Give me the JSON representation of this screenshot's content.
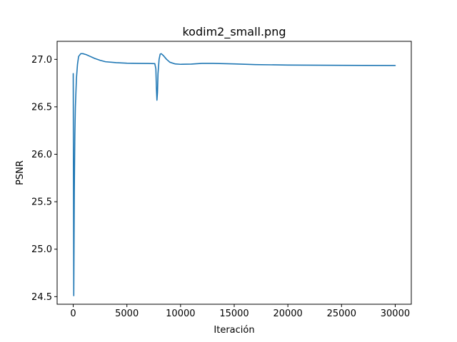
{
  "chart_data": {
    "type": "line",
    "title": "kodim2_small.png",
    "xlabel": "Iteración",
    "ylabel": "PSNR",
    "xlim": [
      -1500,
      31500
    ],
    "ylim": [
      24.42,
      27.19
    ],
    "x_ticks": [
      0,
      5000,
      10000,
      15000,
      20000,
      25000,
      30000
    ],
    "x_tick_labels": [
      "0",
      "5000",
      "10000",
      "15000",
      "20000",
      "25000",
      "30000"
    ],
    "y_ticks": [
      24.5,
      25.0,
      25.5,
      26.0,
      26.5,
      27.0
    ],
    "y_tick_labels": [
      "24.5",
      "25.0",
      "25.5",
      "26.0",
      "26.5",
      "27.0"
    ],
    "grid": false,
    "series": [
      {
        "color": "#1f77b4",
        "x": [
          0,
          50,
          100,
          150,
          200,
          300,
          400,
          500,
          700,
          900,
          1200,
          1600,
          2000,
          2500,
          3000,
          4000,
          5000,
          6000,
          7000,
          7600,
          7700,
          7750,
          7800,
          7850,
          7900,
          8000,
          8100,
          8200,
          8400,
          8700,
          9000,
          9500,
          10000,
          11000,
          12000,
          13000,
          14000,
          15000,
          17000,
          20000,
          25000,
          30000
        ],
        "y": [
          26.85,
          24.51,
          25.6,
          26.2,
          26.5,
          26.8,
          26.95,
          27.03,
          27.06,
          27.06,
          27.05,
          27.03,
          27.01,
          26.99,
          26.975,
          26.965,
          26.96,
          26.958,
          26.957,
          26.955,
          26.9,
          26.7,
          26.57,
          26.65,
          26.85,
          27.0,
          27.055,
          27.06,
          27.04,
          27.0,
          26.97,
          26.952,
          26.948,
          26.95,
          26.958,
          26.958,
          26.955,
          26.952,
          26.945,
          26.94,
          26.937,
          26.935
        ]
      }
    ]
  }
}
